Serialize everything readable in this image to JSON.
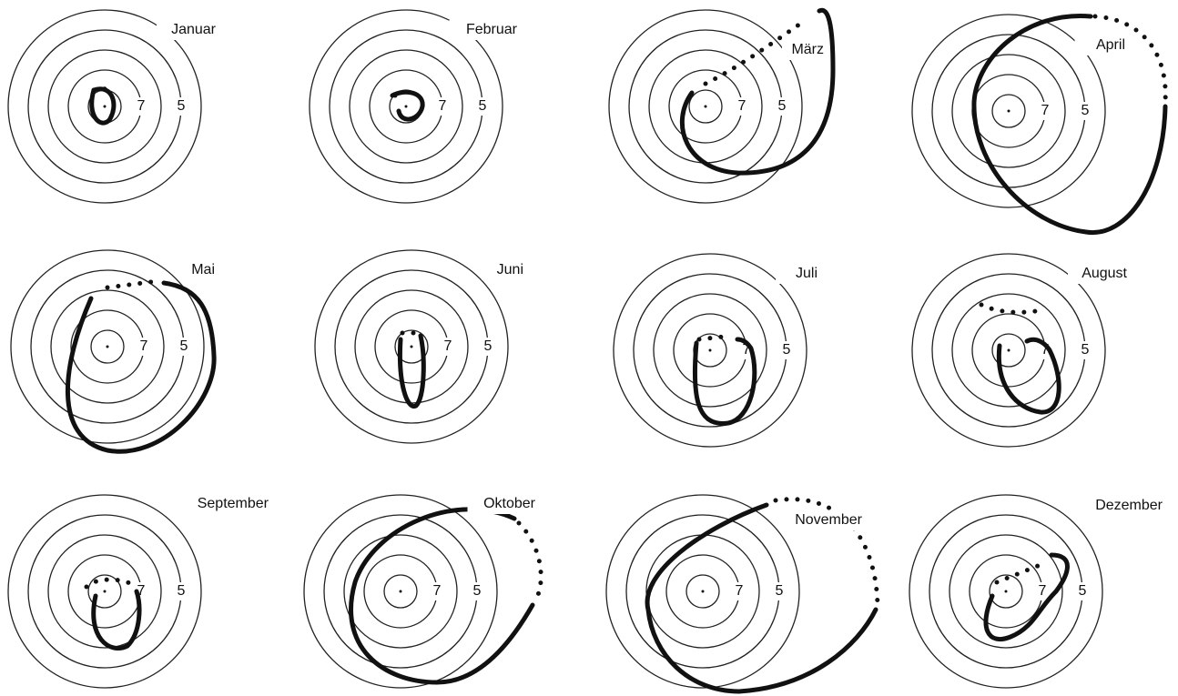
{
  "panels": [
    {
      "title": "Januar",
      "ring_labels": [
        "7",
        "5"
      ]
    },
    {
      "title": "Februar",
      "ring_labels": [
        "7",
        "5"
      ]
    },
    {
      "title": "März",
      "ring_labels": [
        "7",
        "5"
      ]
    },
    {
      "title": "April",
      "ring_labels": [
        "7",
        "5"
      ]
    },
    {
      "title": "Mai",
      "ring_labels": [
        "7",
        "5"
      ]
    },
    {
      "title": "Juni",
      "ring_labels": [
        "7",
        "5"
      ]
    },
    {
      "title": "Juli",
      "ring_labels": [
        "7",
        "5"
      ]
    },
    {
      "title": "August",
      "ring_labels": [
        "7",
        "5"
      ]
    },
    {
      "title": "September",
      "ring_labels": [
        "7",
        "5"
      ]
    },
    {
      "title": "Oktober",
      "ring_labels": [
        "7",
        "5"
      ]
    },
    {
      "title": "November",
      "ring_labels": [
        "7",
        "5"
      ]
    },
    {
      "title": "Dezember",
      "ring_labels": [
        "7",
        "5"
      ]
    }
  ]
}
